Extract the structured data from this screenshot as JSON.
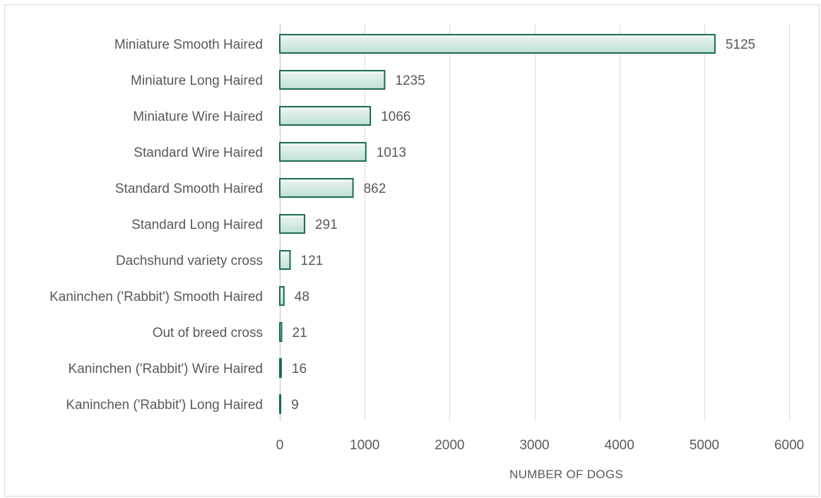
{
  "chart_data": {
    "type": "bar",
    "orientation": "horizontal",
    "title": "",
    "xlabel": "NUMBER OF DOGS",
    "ylabel": "",
    "xlim": [
      0,
      6000
    ],
    "x_ticks": [
      0,
      1000,
      2000,
      3000,
      4000,
      5000,
      6000
    ],
    "grid": true,
    "legend": "none",
    "categories": [
      "Miniature Smooth Haired",
      "Miniature Long Haired",
      "Miniature Wire Haired",
      "Standard Wire Haired",
      "Standard Smooth Haired",
      "Standard Long Haired",
      "Dachshund variety cross",
      "Kaninchen ('Rabbit') Smooth Haired",
      "Out of breed cross",
      "Kaninchen ('Rabbit') Wire Haired",
      "Kaninchen ('Rabbit') Long Haired"
    ],
    "values": [
      5125,
      1235,
      1066,
      1013,
      862,
      291,
      121,
      48,
      21,
      16,
      9
    ],
    "colors": {
      "bar_fill_light": "#eef7f3",
      "bar_fill_dark": "#bfe0d2",
      "bar_edge": "#1a6b52",
      "gridline": "#d9d9d9",
      "text": "#595959"
    }
  }
}
